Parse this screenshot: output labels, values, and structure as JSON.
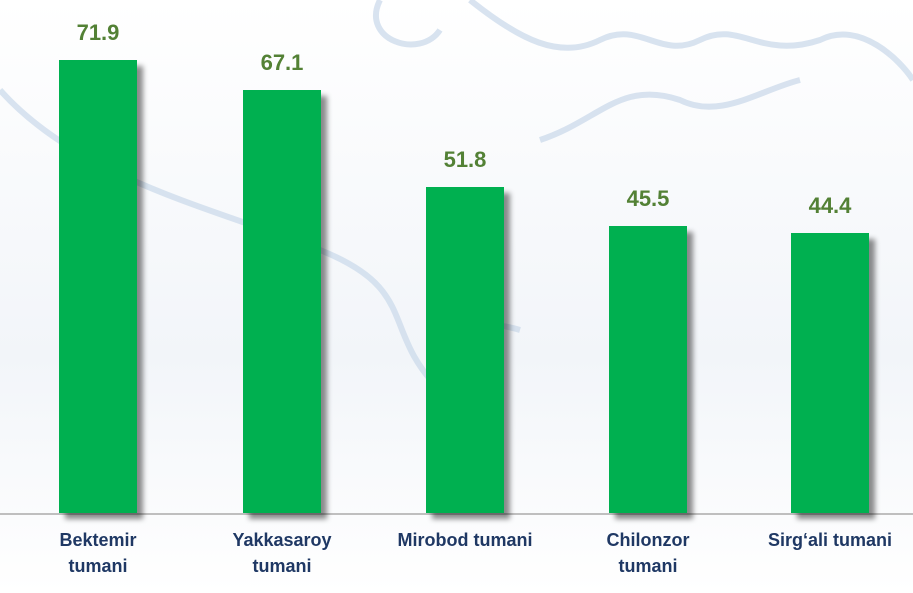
{
  "chart_data": {
    "type": "bar",
    "categories": [
      "Bektemir tumani",
      "Yakkasaroy tumani",
      "Mirobod tumani",
      "Chilonzor tumani",
      "Sirg‘ali tumani"
    ],
    "values": [
      71.9,
      67.1,
      51.8,
      45.5,
      44.4
    ],
    "color": "#00b050"
  }
}
